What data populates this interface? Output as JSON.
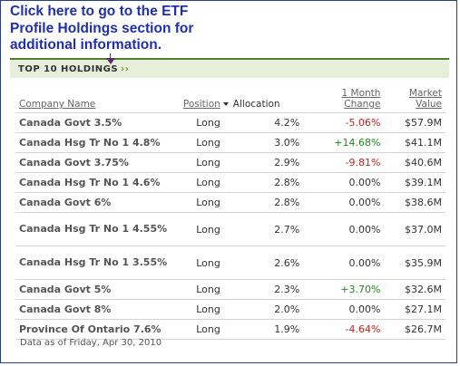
{
  "callout": {
    "line1": "Click here to go to the ETF",
    "line2": "Profile Holdings section for",
    "line3": "additional information."
  },
  "section": {
    "title": "TOP 10 HOLDINGS",
    "chevron": "››"
  },
  "table": {
    "headers": {
      "company_name": "Company Name",
      "position": "Position",
      "allocation": "Allocation",
      "change_line1": "1 Month",
      "change_line2": "Change",
      "value_line1": "Market",
      "value_line2": "Value"
    },
    "rows": [
      {
        "name": "Canada Govt 3.5%",
        "position": "Long",
        "allocation": "4.2%",
        "change": "-5.06%",
        "change_sign": "neg",
        "value": "$57.9M"
      },
      {
        "name": "Canada Hsg Tr No 1 4.8%",
        "position": "Long",
        "allocation": "3.0%",
        "change": "+14.68%",
        "change_sign": "pos",
        "value": "$41.1M"
      },
      {
        "name": "Canada Govt 3.75%",
        "position": "Long",
        "allocation": "2.9%",
        "change": "-9.81%",
        "change_sign": "neg",
        "value": "$40.6M"
      },
      {
        "name": "Canada Hsg Tr No 1 4.6%",
        "position": "Long",
        "allocation": "2.8%",
        "change": "0.00%",
        "change_sign": "zero",
        "value": "$39.1M"
      },
      {
        "name": "Canada Govt 6%",
        "position": "Long",
        "allocation": "2.8%",
        "change": "0.00%",
        "change_sign": "zero",
        "value": "$38.6M"
      },
      {
        "name": "Canada Hsg Tr No 1 4.55%",
        "position": "Long",
        "allocation": "2.7%",
        "change": "0.00%",
        "change_sign": "zero",
        "value": "$37.0M"
      },
      {
        "name": "Canada Hsg Tr No 1 3.55%",
        "position": "Long",
        "allocation": "2.6%",
        "change": "0.00%",
        "change_sign": "zero",
        "value": "$35.9M"
      },
      {
        "name": "Canada Govt 5%",
        "position": "Long",
        "allocation": "2.3%",
        "change": "+3.70%",
        "change_sign": "pos",
        "value": "$32.6M"
      },
      {
        "name": "Canada Govt 8%",
        "position": "Long",
        "allocation": "2.0%",
        "change": "0.00%",
        "change_sign": "zero",
        "value": "$27.1M"
      },
      {
        "name": "Province Of Ontario 7.6%",
        "position": "Long",
        "allocation": "1.9%",
        "change": "-4.64%",
        "change_sign": "neg",
        "value": "$26.7M"
      }
    ]
  },
  "footnote": "Data as of Friday, Apr 30, 2010",
  "colors": {
    "callout_text": "#1f2fb0",
    "section_bg": "#e6efd9",
    "section_border": "#4f7f2c",
    "positive": "#1a8a1a",
    "negative": "#cc1f1f"
  }
}
